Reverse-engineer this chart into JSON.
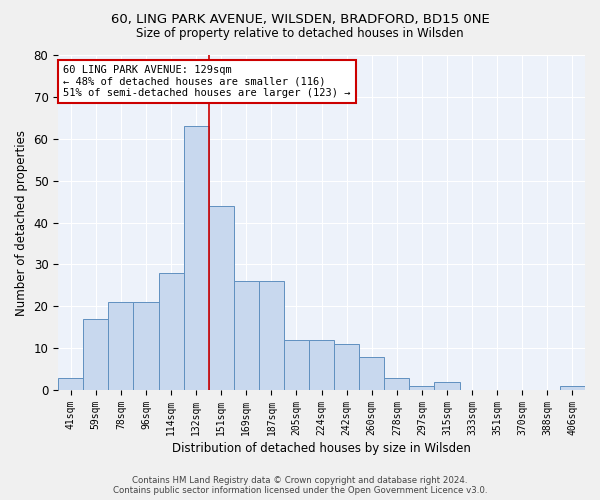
{
  "title_line1": "60, LING PARK AVENUE, WILSDEN, BRADFORD, BD15 0NE",
  "title_line2": "Size of property relative to detached houses in Wilsden",
  "xlabel": "Distribution of detached houses by size in Wilsden",
  "ylabel": "Number of detached properties",
  "categories": [
    "41sqm",
    "59sqm",
    "78sqm",
    "96sqm",
    "114sqm",
    "132sqm",
    "151sqm",
    "169sqm",
    "187sqm",
    "205sqm",
    "224sqm",
    "242sqm",
    "260sqm",
    "278sqm",
    "297sqm",
    "315sqm",
    "333sqm",
    "351sqm",
    "370sqm",
    "388sqm",
    "406sqm"
  ],
  "values": [
    3,
    17,
    21,
    21,
    28,
    63,
    44,
    26,
    26,
    12,
    12,
    11,
    8,
    3,
    1,
    2,
    0,
    0,
    0,
    0,
    1
  ],
  "bar_color": "#c8d8ee",
  "bar_edge_color": "#6090c0",
  "background_color": "#edf2fa",
  "grid_color": "#ffffff",
  "annotation_text": "60 LING PARK AVENUE: 129sqm\n← 48% of detached houses are smaller (116)\n51% of semi-detached houses are larger (123) →",
  "vline_x_index": 5,
  "vline_color": "#cc0000",
  "ylim": [
    0,
    80
  ],
  "yticks": [
    0,
    10,
    20,
    30,
    40,
    50,
    60,
    70,
    80
  ],
  "annotation_box_facecolor": "#ffffff",
  "annotation_box_edgecolor": "#cc0000",
  "footer_line1": "Contains HM Land Registry data © Crown copyright and database right 2024.",
  "footer_line2": "Contains public sector information licensed under the Open Government Licence v3.0."
}
